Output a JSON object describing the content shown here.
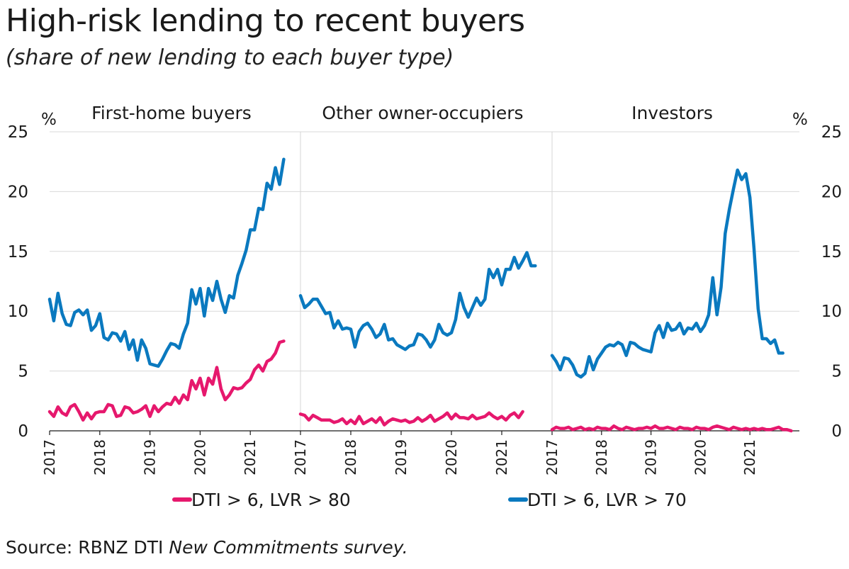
{
  "title": "High-risk lending to recent buyers",
  "subtitle": "(share of new lending to each buyer type)",
  "source_prefix": "Source: RBNZ DTI ",
  "source_italic": "New Commitments survey.",
  "chart_data": {
    "type": "line",
    "y_unit_left": "%",
    "y_unit_right": "%",
    "ylim": [
      0,
      25
    ],
    "yticks": [
      0,
      5,
      10,
      15,
      20,
      25
    ],
    "xlim": [
      2017,
      2022
    ],
    "xticks": [
      "2017",
      "2018",
      "2019",
      "2020",
      "2021"
    ],
    "grid": true,
    "legend_position": "bottom",
    "colors": {
      "DTI > 6, LVR > 80": "#e6186d",
      "DTI > 6, LVR > 70": "#0a79bf"
    },
    "series_names": [
      "DTI > 6, LVR > 80",
      "DTI > 6, LVR > 70"
    ],
    "panels": [
      {
        "title": "First-home buyers",
        "x_start": 2017.0,
        "x_step": 0.0833333,
        "series": [
          {
            "name": "DTI > 6, LVR > 80",
            "values": [
              1.6,
              1.2,
              2.0,
              1.5,
              1.3,
              2.0,
              2.2,
              1.6,
              0.9,
              1.5,
              1.0,
              1.5,
              1.6,
              1.6,
              2.2,
              2.1,
              1.2,
              1.3,
              2.0,
              1.9,
              1.5,
              1.6,
              1.8,
              2.1,
              1.2,
              2.1,
              1.6,
              2.0,
              2.3,
              2.2,
              2.8,
              2.3,
              3.0,
              2.6,
              4.2,
              3.5,
              4.4,
              3.0,
              4.4,
              3.9,
              5.3,
              3.5,
              2.6,
              3.0,
              3.6,
              3.5,
              3.6,
              4.0,
              4.3,
              5.1,
              5.5,
              5.0,
              5.8,
              6.0,
              6.5,
              7.4,
              7.5
            ]
          },
          {
            "name": "DTI > 6, LVR > 70",
            "values": [
              11.0,
              9.2,
              11.5,
              9.8,
              8.9,
              8.8,
              9.9,
              10.1,
              9.7,
              10.1,
              8.4,
              8.8,
              9.8,
              7.8,
              7.6,
              8.2,
              8.1,
              7.5,
              8.3,
              6.8,
              7.6,
              5.9,
              7.6,
              6.9,
              5.6,
              5.5,
              5.4,
              6.0,
              6.7,
              7.3,
              7.2,
              6.9,
              8.1,
              9.0,
              11.8,
              10.6,
              11.9,
              9.6,
              11.9,
              10.9,
              12.5,
              11.0,
              9.9,
              11.3,
              11.1,
              13.0,
              14.0,
              15.1,
              16.8,
              16.8,
              18.6,
              18.5,
              20.7,
              20.2,
              22.0,
              20.6,
              22.7
            ]
          }
        ]
      },
      {
        "title": "Other owner-occupiers",
        "x_start": 2017.0,
        "x_step": 0.0833333,
        "series": [
          {
            "name": "DTI > 6, LVR > 80",
            "values": [
              1.4,
              1.3,
              0.9,
              1.3,
              1.1,
              0.9,
              0.9,
              0.9,
              0.7,
              0.8,
              1.0,
              0.6,
              0.9,
              0.6,
              1.2,
              0.6,
              0.8,
              1.0,
              0.7,
              1.1,
              0.5,
              0.8,
              1.0,
              0.9,
              0.8,
              0.9,
              0.7,
              0.8,
              1.1,
              0.8,
              1.0,
              1.3,
              0.8,
              1.0,
              1.2,
              1.5,
              1.0,
              1.4,
              1.1,
              1.1,
              1.0,
              1.3,
              1.0,
              1.1,
              1.2,
              1.5,
              1.2,
              1.0,
              1.2,
              0.9,
              1.3,
              1.5,
              1.1,
              1.6
            ]
          },
          {
            "name": "DTI > 6, LVR > 70",
            "values": [
              11.3,
              10.3,
              10.6,
              11.0,
              11.0,
              10.4,
              9.8,
              9.9,
              8.6,
              9.2,
              8.5,
              8.6,
              8.5,
              7.0,
              8.3,
              8.8,
              9.0,
              8.5,
              7.8,
              8.1,
              8.9,
              7.6,
              7.7,
              7.2,
              7.0,
              6.8,
              7.1,
              7.2,
              8.1,
              8.0,
              7.6,
              7.0,
              7.6,
              8.9,
              8.2,
              8.0,
              8.2,
              9.3,
              11.5,
              10.3,
              9.5,
              10.3,
              11.1,
              10.5,
              11.0,
              13.5,
              12.8,
              13.5,
              12.2,
              13.5,
              13.5,
              14.5,
              13.6,
              14.2,
              14.9,
              13.8,
              13.8
            ]
          }
        ]
      },
      {
        "title": "Investors",
        "x_start": 2017.0,
        "x_step": 0.0833333,
        "series": [
          {
            "name": "DTI > 6, LVR > 80",
            "values": [
              0.1,
              0.3,
              0.2,
              0.2,
              0.3,
              0.1,
              0.2,
              0.3,
              0.1,
              0.2,
              0.1,
              0.3,
              0.2,
              0.2,
              0.1,
              0.4,
              0.2,
              0.1,
              0.3,
              0.2,
              0.1,
              0.2,
              0.2,
              0.3,
              0.2,
              0.4,
              0.2,
              0.2,
              0.3,
              0.2,
              0.1,
              0.3,
              0.2,
              0.2,
              0.1,
              0.3,
              0.2,
              0.2,
              0.1,
              0.3,
              0.4,
              0.3,
              0.2,
              0.1,
              0.3,
              0.2,
              0.1,
              0.2,
              0.1,
              0.2,
              0.1,
              0.2,
              0.1,
              0.1,
              0.2,
              0.3,
              0.1,
              0.1,
              0.0
            ]
          },
          {
            "name": "DTI > 6, LVR > 70",
            "values": [
              6.3,
              5.8,
              5.1,
              6.1,
              6.0,
              5.5,
              4.7,
              4.5,
              4.8,
              6.2,
              5.1,
              6.0,
              6.5,
              7.0,
              7.2,
              7.1,
              7.4,
              7.2,
              6.3,
              7.4,
              7.3,
              7.0,
              6.8,
              6.7,
              6.6,
              8.2,
              8.8,
              7.8,
              9.0,
              8.4,
              8.5,
              9.0,
              8.1,
              8.6,
              8.5,
              9.0,
              8.3,
              8.8,
              9.7,
              12.8,
              9.7,
              12.0,
              16.5,
              18.5,
              20.2,
              21.8,
              21.0,
              21.5,
              19.5,
              15.2,
              10.2,
              7.7,
              7.7,
              7.3,
              7.6,
              6.5,
              6.5
            ]
          }
        ]
      }
    ]
  }
}
